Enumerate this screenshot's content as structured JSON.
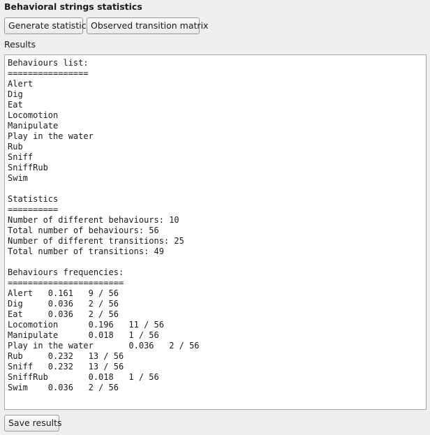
{
  "window": {
    "title": "Behavioral strings statistics"
  },
  "toolbar": {
    "generate_label": "Generate statistics",
    "transition_matrix_label": "Observed transition matrix"
  },
  "results": {
    "label": "Results",
    "lines": [
      "Behaviours list:",
      "================",
      "Alert",
      "Dig",
      "Eat",
      "Locomotion",
      "Manipulate",
      "Play in the water",
      "Rub",
      "Sniff",
      "SniffRub",
      "Swim",
      "",
      "Statistics",
      "==========",
      "Number of different behaviours: 10",
      "Total number of behaviours: 56",
      "Number of different transitions: 25",
      "Total number of transitions: 49",
      "",
      "Behaviours frequencies:",
      "=======================",
      "Alert\t0.161\t9 / 56",
      "Dig\t0.036\t2 / 56",
      "Eat\t0.036\t2 / 56",
      "Locomotion\t0.196\t11 / 56",
      "Manipulate\t0.018\t1 / 56",
      "Play in the water\t0.036\t2 / 56",
      "Rub\t0.232\t13 / 56",
      "Sniff\t0.232\t13 / 56",
      "SniffRub\t0.018\t1 / 56",
      "Swim\t0.036\t2 / 56"
    ]
  },
  "footer": {
    "save_label": "Save results"
  }
}
